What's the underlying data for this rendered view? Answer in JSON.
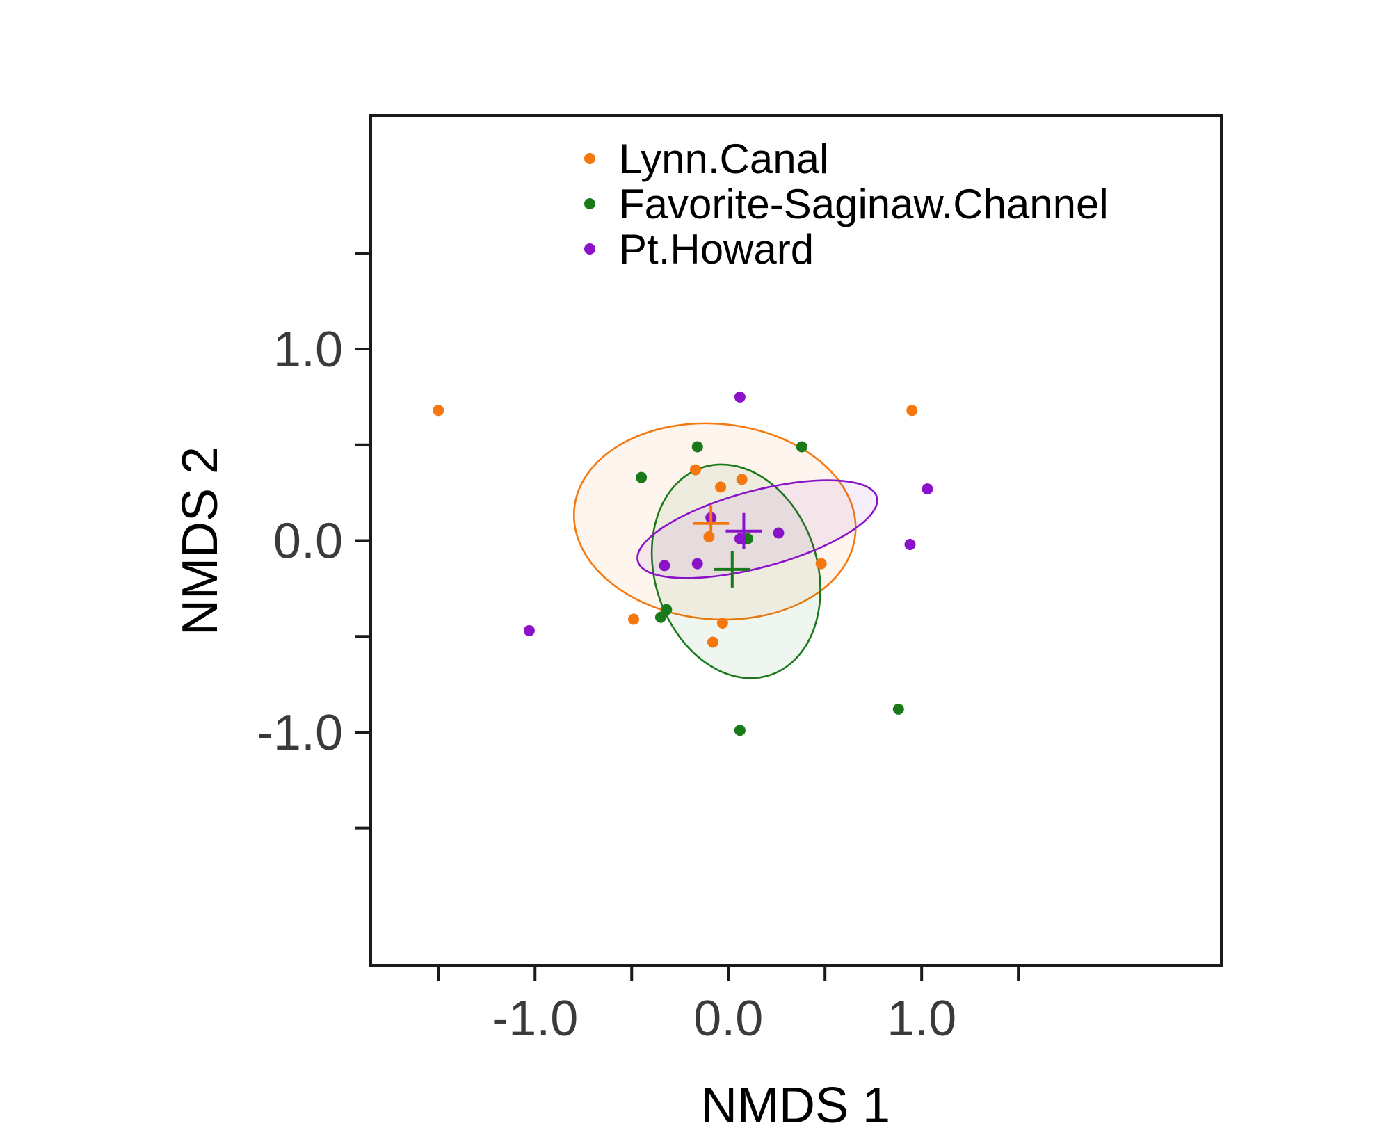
{
  "chart_data": {
    "type": "scatter",
    "title": "",
    "xlabel": "NMDS 1",
    "ylabel": "NMDS 2",
    "xlim": [
      -1.85,
      2.55
    ],
    "ylim": [
      -2.22,
      2.22
    ],
    "x_major_ticks": [
      -1.0,
      0.0,
      1.0
    ],
    "x_tick_labels": [
      "-1.0",
      "0.0",
      "1.0"
    ],
    "x_minor_ticks": [
      -1.5,
      -0.5,
      0.5,
      1.5
    ],
    "y_major_ticks": [
      1.0,
      0.0,
      -1.0
    ],
    "y_tick_labels": [
      "1.0",
      "0.0",
      "-1.0"
    ],
    "y_minor_ticks": [
      1.5,
      0.5,
      -0.5,
      -1.5
    ],
    "grid": false,
    "legend_position": "top-center",
    "series": [
      {
        "name": "Lynn.Canal",
        "color": "#f5780f",
        "points": [
          [
            -1.5,
            0.68
          ],
          [
            0.95,
            0.68
          ],
          [
            -0.17,
            0.37
          ],
          [
            -0.04,
            0.28
          ],
          [
            0.07,
            0.32
          ],
          [
            -0.1,
            0.02
          ],
          [
            0.48,
            -0.12
          ],
          [
            -0.49,
            -0.41
          ],
          [
            -0.03,
            -0.43
          ],
          [
            -0.08,
            -0.53
          ]
        ],
        "centroid": [
          -0.09,
          0.09
        ],
        "ellipse": {
          "center": [
            -0.07,
            0.1
          ],
          "rx": 0.73,
          "ry": 0.51,
          "rotation_deg": -5
        }
      },
      {
        "name": "Favorite-Saginaw.Channel",
        "color": "#1a7a1a",
        "points": [
          [
            -0.16,
            0.49
          ],
          [
            0.38,
            0.49
          ],
          [
            -0.45,
            0.33
          ],
          [
            0.1,
            0.01
          ],
          [
            -0.32,
            -0.36
          ],
          [
            -0.35,
            -0.4
          ],
          [
            0.06,
            -0.99
          ],
          [
            0.88,
            -0.88
          ]
        ],
        "centroid": [
          0.02,
          -0.15
        ],
        "ellipse": {
          "center": [
            0.04,
            -0.16
          ],
          "rx": 0.42,
          "ry": 0.57,
          "rotation_deg": 18
        }
      },
      {
        "name": "Pt.Howard",
        "color": "#8a12c8",
        "points": [
          [
            0.06,
            0.75
          ],
          [
            1.03,
            0.27
          ],
          [
            -0.09,
            0.12
          ],
          [
            0.06,
            0.01
          ],
          [
            0.26,
            0.04
          ],
          [
            -0.33,
            -0.13
          ],
          [
            -0.16,
            -0.12
          ],
          [
            0.94,
            -0.02
          ],
          [
            -1.03,
            -0.47
          ]
        ],
        "centroid": [
          0.08,
          0.05
        ],
        "ellipse": {
          "center": [
            0.15,
            0.06
          ],
          "rx": 0.64,
          "ry": 0.2,
          "rotation_deg": 15
        }
      }
    ]
  }
}
